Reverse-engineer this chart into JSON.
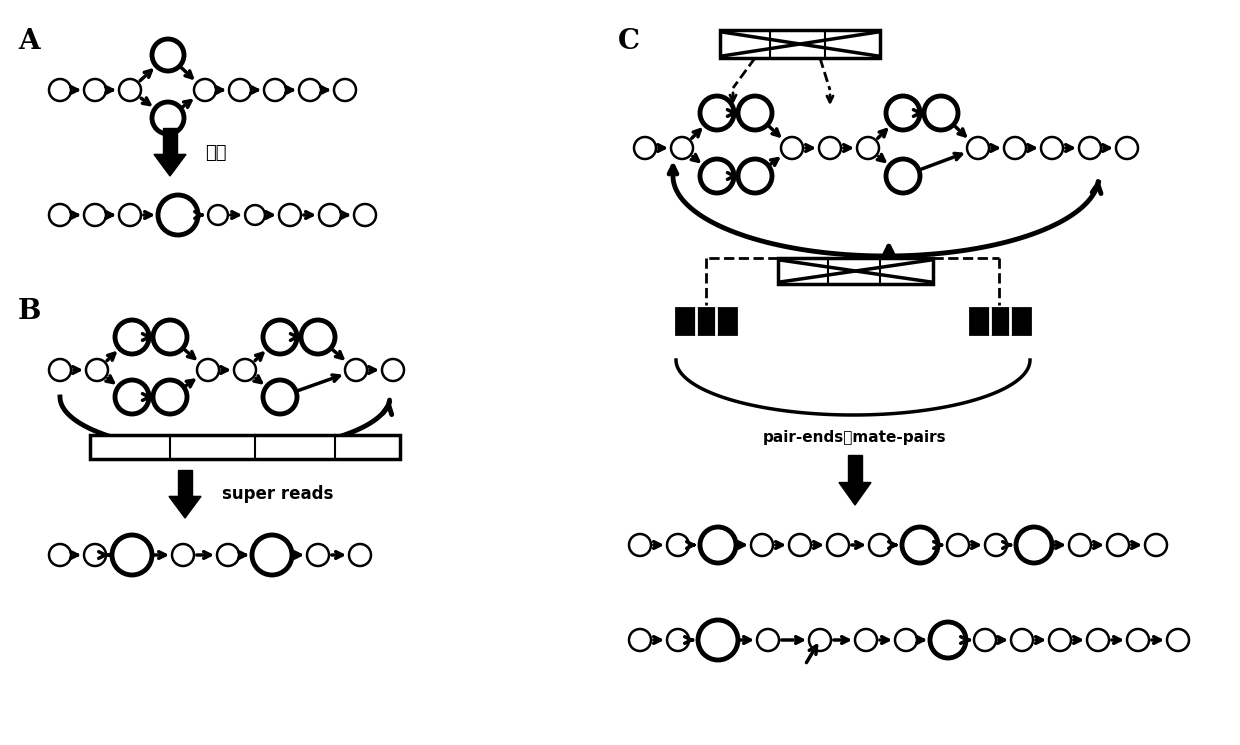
{
  "bg_color": "#ffffff",
  "label_A": "合并",
  "label_B": "super reads",
  "label_C": "pair-ends或mate-pairs"
}
